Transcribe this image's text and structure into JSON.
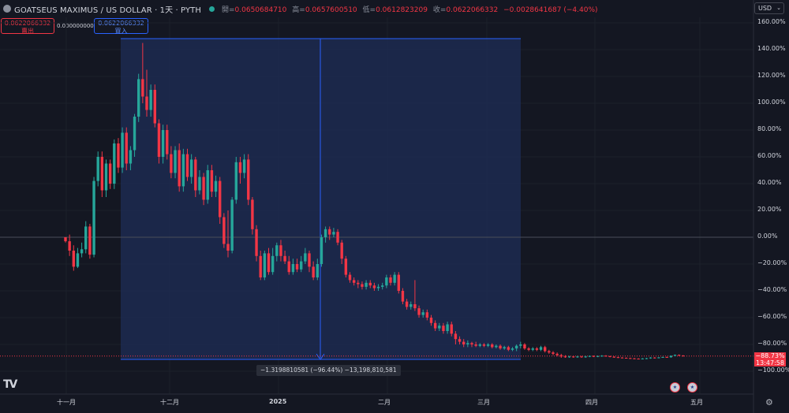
{
  "header": {
    "symbol": "GOATSEUS MAXIMUS / US DOLLAR · 1天 · PYTH",
    "ohlc": [
      {
        "label": "開=",
        "value": "0.0650684710"
      },
      {
        "label": "高=",
        "value": "0.0657600510"
      },
      {
        "label": "低=",
        "value": "0.0612823209"
      },
      {
        "label": "收=",
        "value": "0.0622066332"
      }
    ],
    "change": "−0.0028641687 (−4.40%)",
    "currency": "USD"
  },
  "trade": {
    "sell_price": "0.0622066332",
    "sell_label": "賣出",
    "spread": "0.0000000000",
    "buy_price": "0.0622066332",
    "buy_label": "買入"
  },
  "measure": {
    "label": "−1.3198810581 (−96.44%) −13,198,810,581"
  },
  "price_tag": {
    "percent": "−88.73%",
    "countdown": "13:47:58"
  },
  "colors": {
    "up": "#26a69a",
    "down": "#f23645",
    "measure_fill": "#1e2d57",
    "measure_line": "#2962ff"
  },
  "chart_data": {
    "type": "candlestick",
    "y_axis_unit": "percent",
    "ylim": [
      -100,
      160
    ],
    "y_ticks": [
      "160.00%",
      "140.00%",
      "120.00%",
      "100.00%",
      "80.00%",
      "60.00%",
      "40.00%",
      "20.00%",
      "0.00%",
      "−20.00%",
      "−40.00%",
      "−60.00%",
      "−80.00%",
      "−100.00%"
    ],
    "x_ticks": [
      "十一月",
      "十二月",
      "2025",
      "二月",
      "三月",
      "四月",
      "五月"
    ],
    "candles": [
      [
        0,
        -3,
        -1,
        -4,
        -3
      ],
      [
        -3,
        -10,
        2,
        -14,
        -10
      ],
      [
        -10,
        -22,
        -6,
        -25,
        -22
      ],
      [
        -22,
        -12,
        -8,
        -23,
        -12
      ],
      [
        -12,
        -9,
        -4,
        -15,
        -9
      ],
      [
        -9,
        8,
        12,
        -12,
        8
      ],
      [
        8,
        -13,
        10,
        -16,
        -13
      ],
      [
        -13,
        42,
        45,
        -15,
        42
      ],
      [
        42,
        60,
        64,
        38,
        60
      ],
      [
        60,
        35,
        64,
        30,
        35
      ],
      [
        35,
        55,
        58,
        30,
        55
      ],
      [
        55,
        40,
        58,
        36,
        40
      ],
      [
        40,
        70,
        73,
        36,
        70
      ],
      [
        70,
        52,
        74,
        48,
        52
      ],
      [
        52,
        78,
        82,
        48,
        78
      ],
      [
        78,
        55,
        82,
        50,
        55
      ],
      [
        55,
        65,
        68,
        50,
        65
      ],
      [
        65,
        90,
        92,
        60,
        90
      ],
      [
        90,
        118,
        122,
        86,
        118
      ],
      [
        118,
        105,
        145,
        100,
        105
      ],
      [
        105,
        95,
        125,
        90,
        95
      ],
      [
        95,
        110,
        114,
        90,
        110
      ],
      [
        110,
        85,
        114,
        82,
        85
      ],
      [
        85,
        60,
        88,
        55,
        60
      ],
      [
        60,
        80,
        84,
        55,
        80
      ],
      [
        80,
        62,
        84,
        58,
        62
      ],
      [
        62,
        48,
        68,
        44,
        48
      ],
      [
        48,
        65,
        68,
        44,
        65
      ],
      [
        65,
        38,
        70,
        34,
        38
      ],
      [
        38,
        62,
        66,
        34,
        62
      ],
      [
        62,
        45,
        66,
        42,
        45
      ],
      [
        45,
        58,
        62,
        40,
        58
      ],
      [
        58,
        35,
        60,
        30,
        35
      ],
      [
        35,
        45,
        50,
        32,
        45
      ],
      [
        45,
        28,
        48,
        24,
        28
      ],
      [
        28,
        50,
        54,
        25,
        50
      ],
      [
        50,
        34,
        54,
        30,
        34
      ],
      [
        34,
        42,
        46,
        30,
        42
      ],
      [
        42,
        15,
        45,
        10,
        15
      ],
      [
        15,
        -5,
        18,
        -8,
        -5
      ],
      [
        -5,
        -10,
        20,
        -15,
        -10
      ],
      [
        -10,
        28,
        30,
        -12,
        28
      ],
      [
        28,
        56,
        60,
        25,
        56
      ],
      [
        56,
        48,
        60,
        40,
        48
      ],
      [
        48,
        58,
        62,
        44,
        58
      ],
      [
        58,
        28,
        62,
        24,
        28
      ],
      [
        28,
        6,
        30,
        2,
        6
      ],
      [
        6,
        -14,
        9,
        -18,
        -14
      ],
      [
        -14,
        -30,
        -10,
        -32,
        -30
      ],
      [
        -30,
        -12,
        -10,
        -32,
        -12
      ],
      [
        -12,
        -26,
        -8,
        -28,
        -26
      ],
      [
        -26,
        -14,
        -8,
        -28,
        -14
      ],
      [
        -14,
        -6,
        -4,
        -18,
        -6
      ],
      [
        -6,
        -14,
        -2,
        -18,
        -14
      ],
      [
        -14,
        -18,
        -10,
        -20,
        -18
      ],
      [
        -18,
        -26,
        -14,
        -28,
        -26
      ],
      [
        -26,
        -20,
        -16,
        -28,
        -20
      ],
      [
        -20,
        -24,
        -16,
        -26,
        -24
      ],
      [
        -24,
        -18,
        -14,
        -26,
        -18
      ],
      [
        -18,
        -12,
        -8,
        -20,
        -12
      ],
      [
        -12,
        -22,
        -10,
        -26,
        -22
      ],
      [
        -22,
        -30,
        -18,
        -32,
        -30
      ],
      [
        -30,
        -20,
        -16,
        -32,
        -20
      ],
      [
        -20,
        0,
        2,
        -22,
        0
      ],
      [
        0,
        6,
        8,
        -4,
        6
      ],
      [
        6,
        2,
        8,
        -2,
        2
      ],
      [
        2,
        4,
        7,
        0,
        4
      ],
      [
        4,
        -4,
        6,
        -6,
        -4
      ],
      [
        -4,
        -16,
        -2,
        -20,
        -16
      ],
      [
        -16,
        -28,
        -14,
        -30,
        -28
      ],
      [
        -28,
        -32,
        -26,
        -34,
        -32
      ],
      [
        -32,
        -34,
        -30,
        -36,
        -34
      ],
      [
        -34,
        -35,
        -32,
        -38,
        -35
      ],
      [
        -35,
        -37,
        -33,
        -39,
        -37
      ],
      [
        -37,
        -34,
        -32,
        -39,
        -34
      ],
      [
        -34,
        -36,
        -32,
        -38,
        -36
      ],
      [
        -36,
        -38,
        -34,
        -40,
        -38
      ],
      [
        -38,
        -37,
        -35,
        -40,
        -37
      ],
      [
        -37,
        -36,
        -34,
        -39,
        -36
      ],
      [
        -36,
        -30,
        -28,
        -38,
        -30
      ],
      [
        -30,
        -34,
        -28,
        -36,
        -34
      ],
      [
        -34,
        -28,
        -26,
        -36,
        -28
      ],
      [
        -28,
        -40,
        -26,
        -42,
        -40
      ],
      [
        -40,
        -48,
        -38,
        -50,
        -48
      ],
      [
        -48,
        -52,
        -46,
        -54,
        -52
      ],
      [
        -52,
        -50,
        -48,
        -54,
        -50
      ],
      [
        -50,
        -53,
        -32,
        -55,
        -53
      ],
      [
        -53,
        -58,
        -51,
        -60,
        -58
      ],
      [
        -58,
        -56,
        -54,
        -60,
        -56
      ],
      [
        -56,
        -60,
        -54,
        -62,
        -60
      ],
      [
        -60,
        -64,
        -58,
        -66,
        -64
      ],
      [
        -64,
        -68,
        -62,
        -70,
        -68
      ],
      [
        -68,
        -66,
        -64,
        -70,
        -66
      ],
      [
        -66,
        -70,
        -64,
        -72,
        -70
      ],
      [
        -70,
        -65,
        -63,
        -72,
        -65
      ],
      [
        -65,
        -72,
        -63,
        -74,
        -72
      ],
      [
        -72,
        -76,
        -70,
        -80,
        -76
      ],
      [
        -76,
        -78,
        -74,
        -80,
        -78
      ],
      [
        -78,
        -80,
        -76,
        -82,
        -80
      ],
      [
        -80,
        -79,
        -77,
        -82,
        -79
      ],
      [
        -79,
        -80,
        -78,
        -82,
        -80
      ],
      [
        -80,
        -81,
        -78,
        -82,
        -81
      ],
      [
        -81,
        -80,
        -79,
        -82,
        -80
      ],
      [
        -80,
        -81,
        -79,
        -82,
        -81
      ],
      [
        -81,
        -80,
        -79,
        -82,
        -80
      ],
      [
        -80,
        -82,
        -79,
        -83,
        -82
      ],
      [
        -82,
        -81,
        -80,
        -83,
        -81
      ],
      [
        -81,
        -83,
        -80,
        -84,
        -83
      ],
      [
        -83,
        -82,
        -81,
        -84,
        -82
      ],
      [
        -82,
        -84,
        -81,
        -85,
        -84
      ],
      [
        -84,
        -83,
        -82,
        -85,
        -83
      ],
      [
        -83,
        -81,
        -80,
        -85,
        -81
      ],
      [
        -81,
        -80,
        -78,
        -83,
        -80
      ],
      [
        -80,
        -83,
        -79,
        -84,
        -83
      ],
      [
        -83,
        -84,
        -82,
        -85,
        -84
      ],
      [
        -84,
        -83,
        -82,
        -85,
        -83
      ],
      [
        -83,
        -84,
        -82,
        -85,
        -84
      ],
      [
        -84,
        -82,
        -81,
        -85,
        -82
      ],
      [
        -82,
        -85,
        -81,
        -86,
        -85
      ],
      [
        -85,
        -86,
        -84,
        -87,
        -86
      ],
      [
        -86,
        -87,
        -85,
        -88,
        -87
      ],
      [
        -87,
        -88,
        -86,
        -89,
        -88
      ],
      [
        -88,
        -89,
        -87,
        -90,
        -89
      ],
      [
        -89,
        -89.5,
        -88,
        -90,
        -89.5
      ],
      [
        -89.5,
        -89,
        -88.5,
        -90,
        -89
      ],
      [
        -89,
        -89.5,
        -88.5,
        -90,
        -89.5
      ],
      [
        -89.5,
        -89,
        -88.5,
        -90,
        -89
      ],
      [
        -89,
        -89.3,
        -88.5,
        -90,
        -89.3
      ],
      [
        -89.3,
        -89,
        -88.5,
        -90,
        -89
      ],
      [
        -89,
        -88.6,
        -88.2,
        -89.5,
        -88.6
      ],
      [
        -88.6,
        -89,
        -88.2,
        -89.5,
        -89
      ],
      [
        -89,
        -88.7,
        -88.3,
        -89.5,
        -88.7
      ],
      [
        -88.7,
        -88.4,
        -88,
        -89.2,
        -88.4
      ],
      [
        -88.4,
        -88.8,
        -88,
        -89.2,
        -88.8
      ],
      [
        -88.8,
        -89.2,
        -88.5,
        -89.6,
        -89.2
      ],
      [
        -89.2,
        -89.5,
        -88.8,
        -90,
        -89.5
      ],
      [
        -89.5,
        -89.8,
        -89.2,
        -90.2,
        -89.8
      ],
      [
        -89.8,
        -90,
        -89.5,
        -90.4,
        -90
      ],
      [
        -90,
        -90.2,
        -89.7,
        -90.6,
        -90.2
      ],
      [
        -90.2,
        -90.4,
        -89.9,
        -90.8,
        -90.4
      ],
      [
        -90.4,
        -90.6,
        -90.1,
        -91,
        -90.6
      ],
      [
        -90.6,
        -90.8,
        -90.3,
        -91.2,
        -90.8
      ],
      [
        -90.8,
        -90.5,
        -90.2,
        -91.2,
        -90.5
      ],
      [
        -90.5,
        -90.3,
        -90,
        -91,
        -90.3
      ],
      [
        -90.3,
        -89.8,
        -89.5,
        -90.7,
        -89.8
      ],
      [
        -89.8,
        -90.1,
        -89.5,
        -90.5,
        -90.1
      ],
      [
        -90.1,
        -89.7,
        -89.4,
        -90.4,
        -89.7
      ],
      [
        -89.7,
        -89.4,
        -89.1,
        -90,
        -89.4
      ],
      [
        -89.4,
        -89.6,
        -89,
        -89.9,
        -89.6
      ],
      [
        -89.6,
        -88.5,
        -88.2,
        -89.9,
        -88.5
      ],
      [
        -88.5,
        -87.8,
        -87.5,
        -88.8,
        -87.8
      ],
      [
        -87.8,
        -88.3,
        -87.5,
        -88.6,
        -88.3
      ],
      [
        -88.3,
        -88.7,
        -88,
        -89,
        -88.7
      ]
    ]
  }
}
